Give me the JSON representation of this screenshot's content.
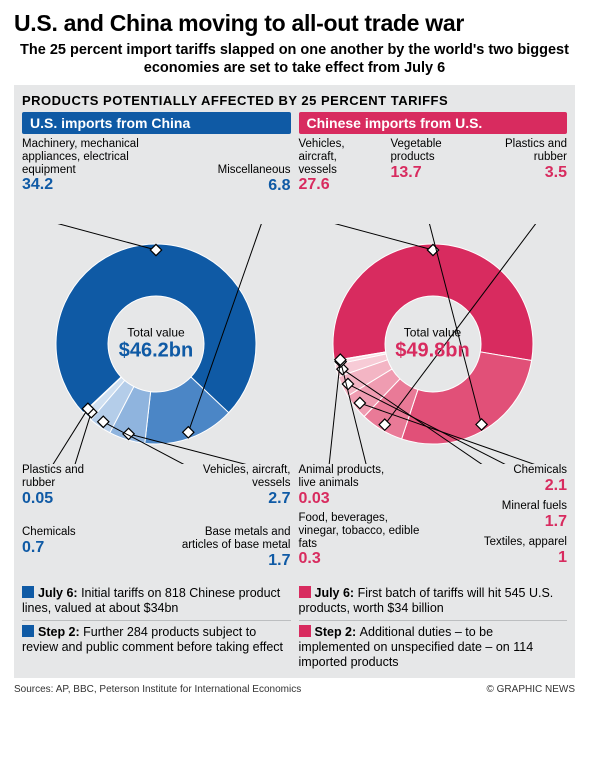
{
  "headline": "U.S. and China moving to all-out trade war",
  "subhead": "The 25 percent import tariffs slapped on one another by the world's two biggest economies are set to take effect from July 6",
  "box_title": "Products Potentially Affected by 25 Percent Tariffs",
  "colors": {
    "blue_header": "#0f5aa5",
    "red_header": "#d82b5f",
    "bg_grey": "#e6e7e8"
  },
  "left": {
    "header": "U.S. imports from China",
    "header_bg": "#0f5aa5",
    "value_color": "#0f5aa5",
    "center_title": "Total value",
    "center_value": "$46.2bn",
    "slices": [
      {
        "label": "Machinery, mechanical appliances, electrical equipment",
        "value": 34.2,
        "color": "#0f5aa5"
      },
      {
        "label": "Miscellaneous",
        "value": 6.8,
        "color": "#4b86c6"
      },
      {
        "label": "Vehicles, aircraft, vessels",
        "value": 2.7,
        "color": "#8fb4de"
      },
      {
        "label": "Base metals and articles of base metal",
        "value": 1.7,
        "color": "#b4cde9"
      },
      {
        "label": "Chemicals",
        "value": 0.7,
        "color": "#d0e0f1"
      },
      {
        "label": "Plastics and rubber",
        "value": 0.05,
        "color": "#e6eef8"
      }
    ],
    "notes": [
      {
        "b": "July 6:",
        "t": "Initial tariffs on 818 Chinese product lines, valued at about $34bn"
      },
      {
        "b": "Step 2:",
        "t": "Further 284 products subject to review and public comment before taking effect"
      }
    ]
  },
  "right": {
    "header": "Chinese imports from U.S.",
    "header_bg": "#d82b5f",
    "value_color": "#d82b5f",
    "center_title": "Total value",
    "center_value": "$49.8bn",
    "slices": [
      {
        "label": "Vehicles, aircraft, vessels",
        "value": 27.6,
        "color": "#d82b5f"
      },
      {
        "label": "Vegetable products",
        "value": 13.7,
        "color": "#e15078"
      },
      {
        "label": "Plastics and rubber",
        "value": 3.5,
        "color": "#e97a97"
      },
      {
        "label": "Chemicals",
        "value": 2.1,
        "color": "#ef9cb1"
      },
      {
        "label": "Mineral fuels",
        "value": 1.7,
        "color": "#f3b5c4"
      },
      {
        "label": "Textiles, apparel",
        "value": 1.0,
        "color": "#f7cbd6"
      },
      {
        "label": "Food, beverages, vinegar, tobacco, edible fats",
        "value": 0.3,
        "color": "#fadfe6"
      },
      {
        "label": "Animal products, live animals",
        "value": 0.03,
        "color": "#fdeff3"
      }
    ],
    "notes": [
      {
        "b": "July 6:",
        "t": "First batch of tariffs will hit 545 U.S. products, worth $34 billion"
      },
      {
        "b": "Step 2:",
        "t": "Additional duties – to be implemented on unspecified date – on 114 imported products"
      }
    ]
  },
  "sources": "Sources: AP, BBC, Peterson Institute for International Economics",
  "credit": "© GRAPHIC NEWS"
}
